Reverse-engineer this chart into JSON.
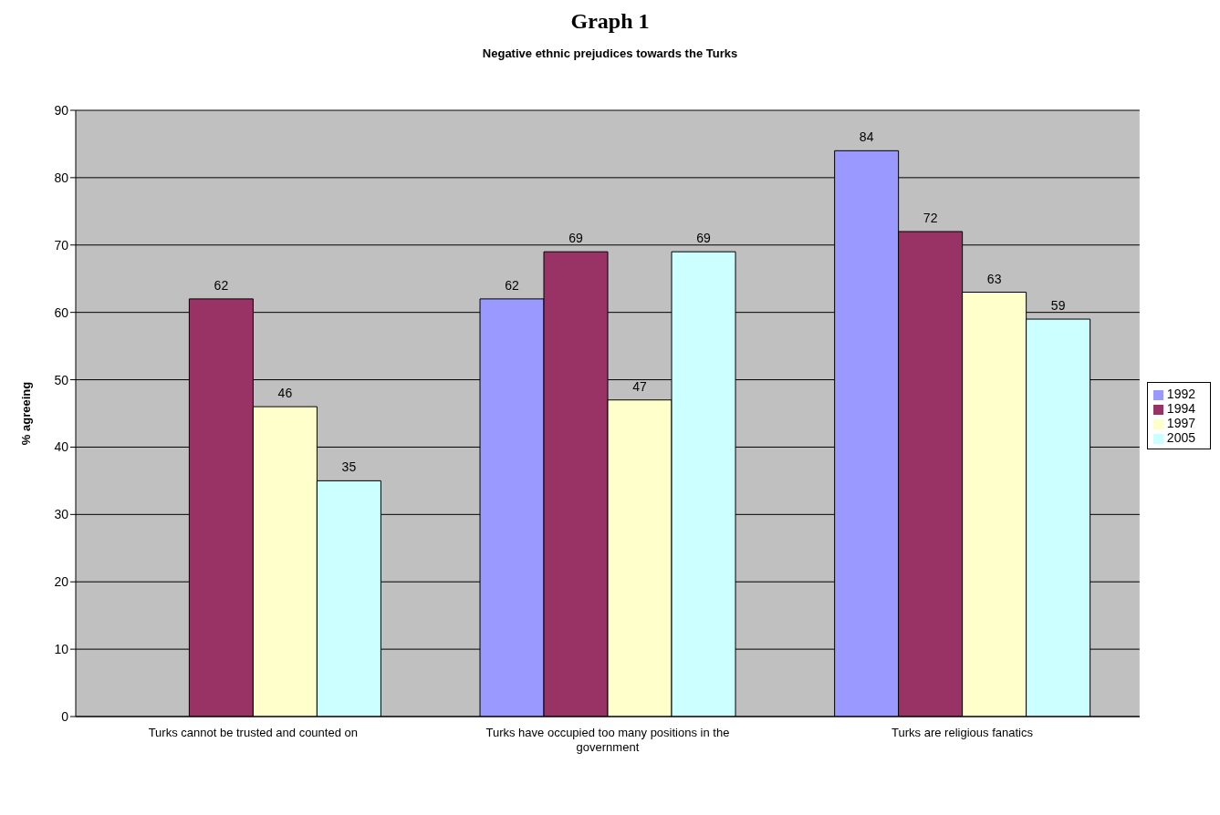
{
  "chart_data": {
    "type": "bar",
    "title": "Graph 1",
    "subtitle": "Negative ethnic prejudices towards the Turks",
    "ylabel": "% agreeing",
    "categories": [
      "Turks cannot be trusted and counted on",
      "Turks have occupied too many positions in the government",
      "Turks are religious fanatics"
    ],
    "series": [
      {
        "name": "1992",
        "color": "#9999ff",
        "values": [
          null,
          62,
          84
        ]
      },
      {
        "name": "1994",
        "color": "#993366",
        "values": [
          62,
          69,
          72
        ]
      },
      {
        "name": "1997",
        "color": "#ffffcc",
        "values": [
          46,
          47,
          63
        ]
      },
      {
        "name": "2005",
        "color": "#ccffff",
        "values": [
          35,
          69,
          59
        ]
      }
    ],
    "ylim": [
      0,
      90
    ],
    "yticks": [
      0,
      10,
      20,
      30,
      40,
      50,
      60,
      70,
      80,
      90
    ],
    "grid": "y",
    "legend": "right",
    "data_labels": true
  }
}
